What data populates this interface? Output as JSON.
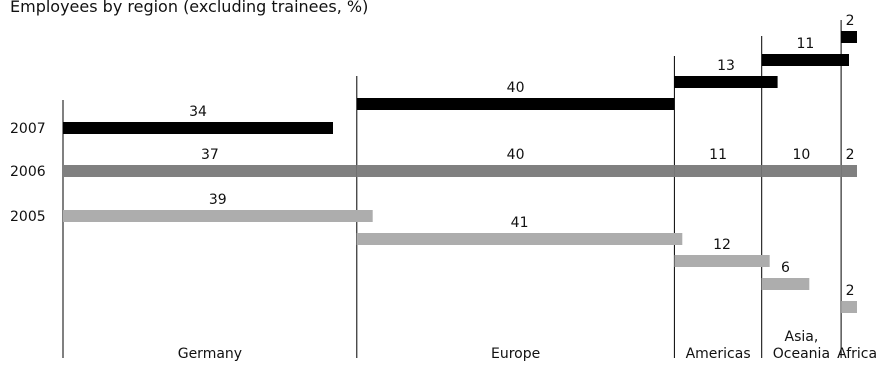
{
  "title": "Employees by region (excluding trainees, %)",
  "chart_data": {
    "type": "bar",
    "title": "Employees by region (excluding trainees, %)",
    "categories": [
      "Germany",
      "Europe",
      "Americas",
      "Asia, Oceania",
      "Africa"
    ],
    "series": [
      {
        "name": "2007",
        "values": [
          34,
          40,
          13,
          11,
          2
        ],
        "color": "#000000"
      },
      {
        "name": "2006",
        "values": [
          37,
          40,
          11,
          10,
          2
        ],
        "color": "#808080"
      },
      {
        "name": "2005",
        "values": [
          39,
          41,
          12,
          6,
          2
        ],
        "color": "#adadad"
      }
    ],
    "region_widths_basis": "2006",
    "legend": "left"
  }
}
